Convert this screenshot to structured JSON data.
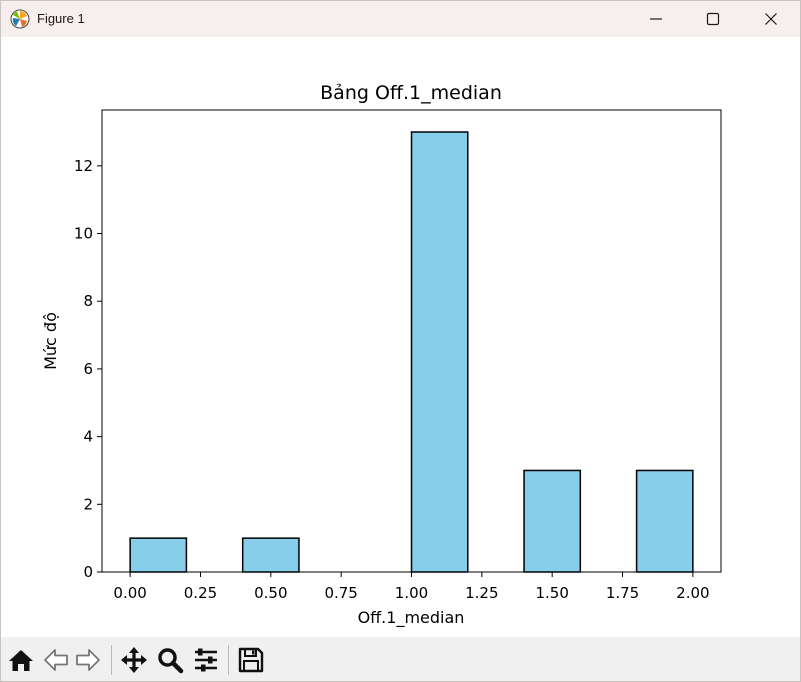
{
  "window": {
    "title": "Figure 1",
    "controls": {
      "minimize": "minimize-icon",
      "maximize": "maximize-icon",
      "close": "close-icon"
    }
  },
  "toolbar": {
    "tools": [
      {
        "name": "home",
        "icon": "home-icon"
      },
      {
        "name": "back",
        "icon": "back-arrow-icon"
      },
      {
        "name": "forward",
        "icon": "forward-arrow-icon"
      },
      {
        "name": "pan",
        "icon": "move-icon"
      },
      {
        "name": "zoom",
        "icon": "zoom-icon"
      },
      {
        "name": "configure-subplots",
        "icon": "sliders-icon"
      },
      {
        "name": "save",
        "icon": "save-icon"
      }
    ]
  },
  "chart_data": {
    "type": "bar",
    "title": "Bảng Off.1_median",
    "xlabel": "Off.1_median",
    "ylabel": "Mức độ",
    "bin_edges": [
      0.0,
      0.2,
      0.4,
      0.6,
      0.8,
      1.0,
      1.2,
      1.4,
      1.6,
      1.8,
      2.0
    ],
    "values": [
      1,
      0,
      1,
      0,
      0,
      13,
      0,
      3,
      0,
      3
    ],
    "xlim": [
      -0.1,
      2.1
    ],
    "ylim": [
      0,
      13.65
    ],
    "xticks": [
      "0.00",
      "0.25",
      "0.50",
      "0.75",
      "1.00",
      "1.25",
      "1.50",
      "1.75",
      "2.00"
    ],
    "xtick_values": [
      0,
      0.25,
      0.5,
      0.75,
      1.0,
      1.25,
      1.5,
      1.75,
      2.0
    ],
    "yticks": [
      "0",
      "2",
      "4",
      "6",
      "8",
      "10",
      "12"
    ],
    "ytick_values": [
      0,
      2,
      4,
      6,
      8,
      10,
      12
    ],
    "bar_color": "#87ceeb",
    "edge_color": "#000000",
    "grid": false,
    "legend": "none"
  }
}
